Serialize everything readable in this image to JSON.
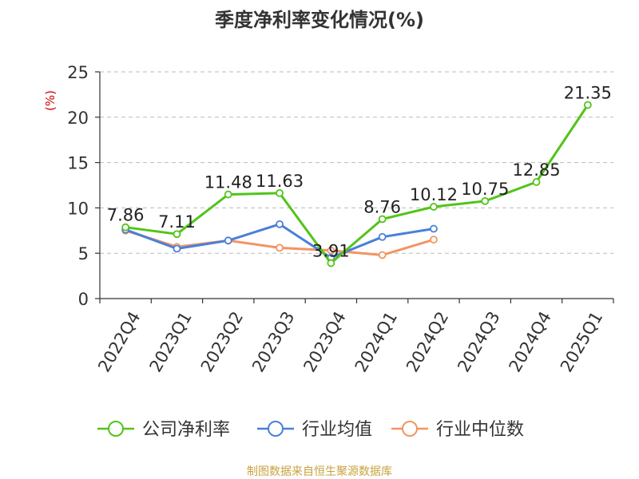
{
  "chart_data": {
    "type": "line",
    "title": "季度净利率变化情况(%)",
    "ylabel": "(%)",
    "xlabel": "",
    "ylim": [
      0,
      25
    ],
    "yticks": [
      0,
      5,
      10,
      15,
      20,
      25
    ],
    "grid": true,
    "legend_position": "bottom",
    "categories": [
      "2022Q4",
      "2023Q1",
      "2023Q2",
      "2023Q3",
      "2023Q4",
      "2024Q1",
      "2024Q2",
      "2024Q3",
      "2024Q4",
      "2025Q1"
    ],
    "series": [
      {
        "name": "公司净利率",
        "color": "#52c41a",
        "values": [
          7.86,
          7.11,
          11.48,
          11.63,
          3.91,
          8.76,
          10.12,
          10.75,
          12.85,
          21.35
        ],
        "labels": [
          "7.86",
          "7.11",
          "11.48",
          "11.63",
          "3.91",
          "8.76",
          "10.12",
          "10.75",
          "12.85",
          "21.35"
        ]
      },
      {
        "name": "行业均值",
        "color": "#4a7fd9",
        "values": [
          7.6,
          5.5,
          6.4,
          8.2,
          4.5,
          6.8,
          7.7,
          null,
          null,
          null
        ]
      },
      {
        "name": "行业中位数",
        "color": "#f39461",
        "values": [
          7.5,
          5.7,
          6.4,
          5.6,
          5.3,
          4.8,
          6.5,
          null,
          null,
          null
        ]
      }
    ]
  },
  "footer": {
    "source": "制图数据来自恒生聚源数据库"
  },
  "colors": {
    "title": "#333333",
    "axis": "#333333",
    "grid": "#bbbbbb",
    "ylabel": "#cc0000",
    "footer": "#c8a23c"
  }
}
